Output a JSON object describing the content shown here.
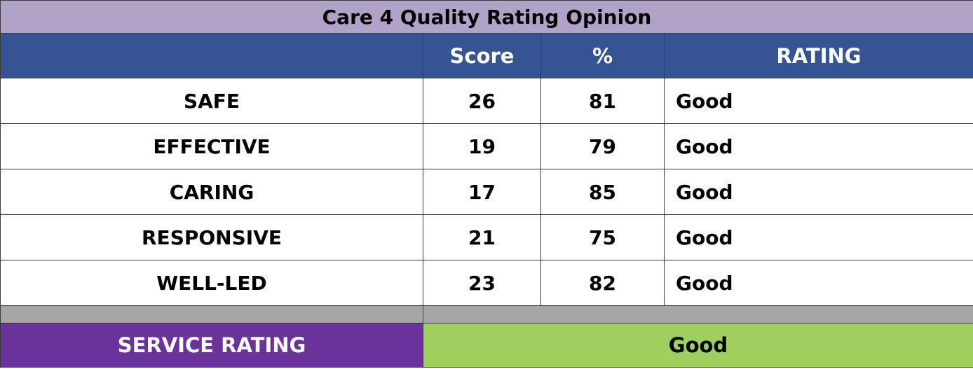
{
  "title": "Care 4 Quality Rating Opinion",
  "headers": [
    "",
    "Score",
    "%",
    "RATING"
  ],
  "rows": [
    {
      "domain": "SAFE",
      "score": "26",
      "percent": "81",
      "rating": "Good"
    },
    {
      "domain": "EFFECTIVE",
      "score": "19",
      "percent": "79",
      "rating": "Good"
    },
    {
      "domain": "CARING",
      "score": "17",
      "percent": "85",
      "rating": "Good"
    },
    {
      "domain": "RESPONSIVE",
      "score": "21",
      "percent": "75",
      "rating": "Good"
    },
    {
      "domain": "WELL-LED",
      "score": "23",
      "percent": "82",
      "rating": "Good"
    }
  ],
  "footer": {
    "label": "SERVICE RATING",
    "value": "Good"
  },
  "colors": {
    "title_bg": "#b1a3c8",
    "header_bg": "#365493",
    "spacer_bg": "#a6a6a6",
    "footer_label_bg": "#6a329b",
    "footer_value_bg": "#9fcf5f",
    "body_bg": "#ffffff"
  }
}
